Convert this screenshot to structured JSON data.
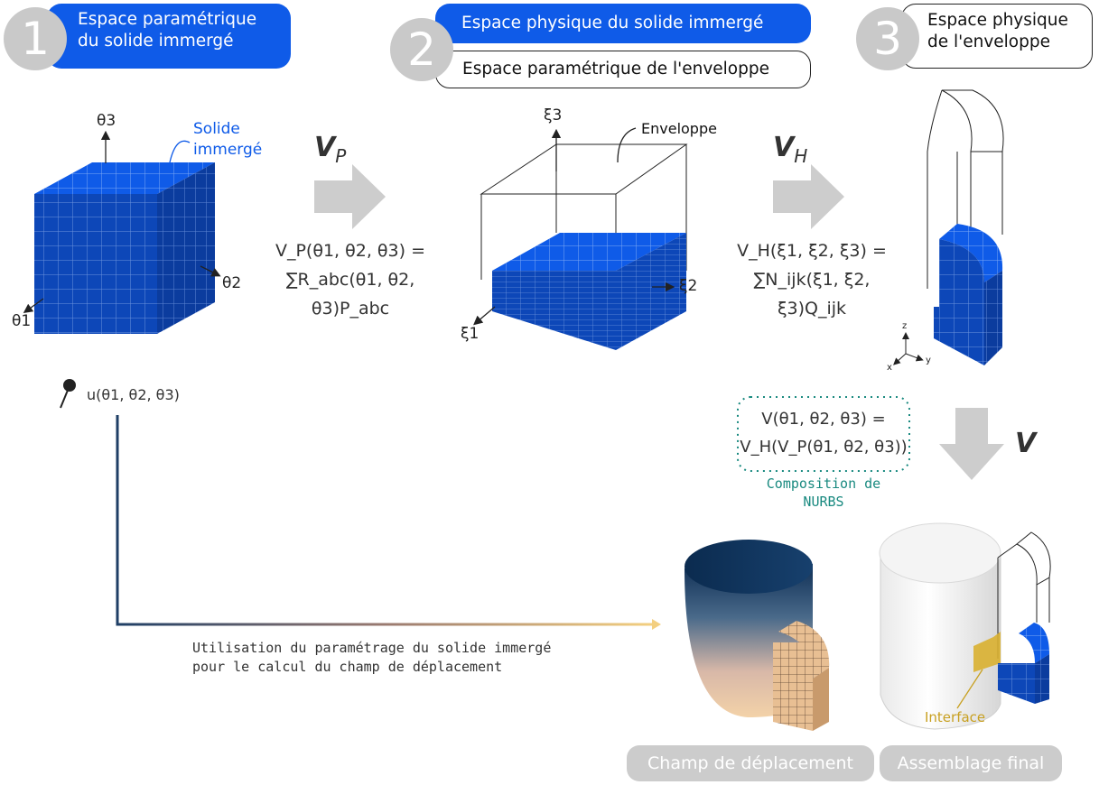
{
  "steps": [
    {
      "number": "1",
      "label_line1": "Espace paramétrique",
      "label_line2": "du solide immergé"
    },
    {
      "number": "2",
      "label_blue": "Espace physique du solide immergé",
      "label_white": "Espace paramétrique de l'enveloppe"
    },
    {
      "number": "3",
      "label_line1": "Espace physique",
      "label_line2": "de l'enveloppe"
    }
  ],
  "cube1": {
    "axis_theta3": "θ3",
    "axis_theta2": "θ2",
    "axis_theta1": "θ1",
    "callout_line1": "Solide",
    "callout_line2": "immergé"
  },
  "cube2": {
    "axis_xi3": "ξ3",
    "axis_xi2": "ξ2",
    "axis_xi1": "ξ1",
    "callout": "Enveloppe"
  },
  "maps": {
    "vp_label": "V",
    "vp_sub": "P",
    "vp_formula_line1": "V_P(θ1, θ2, θ3) =",
    "vp_formula_line2": "∑R_abc(θ1, θ2, θ3)P_abc",
    "vh_label": "V",
    "vh_sub": "H",
    "vh_formula_line1": "V_H(ξ1, ξ2, ξ3) =",
    "vh_formula_line2": "∑N_ijk(ξ1, ξ2, ξ3)Q_ijk",
    "v_label": "V"
  },
  "composition": {
    "formula_line1": "V(θ1, θ2, θ3) =",
    "formula_line2": "V_H(V_P(θ1, θ2, θ3))",
    "caption_line1": "Composition de",
    "caption_line2": "NURBS"
  },
  "axes3d": {
    "z": "z",
    "x": "x",
    "y": "y"
  },
  "displacement": {
    "pin_label": "u(θ1, θ2, θ3)",
    "path_caption_line1": "Utilisation du paramétrage du solide immergé",
    "path_caption_line2": "pour le calcul du champ de déplacement"
  },
  "interface_label": "Interface",
  "badges": {
    "left": "Champ de déplacement",
    "right": "Assemblage final"
  },
  "colors": {
    "blue": "#0f5be8",
    "teal": "#1a8a80",
    "interface": "#c8a020",
    "badge": "#cccccc"
  }
}
